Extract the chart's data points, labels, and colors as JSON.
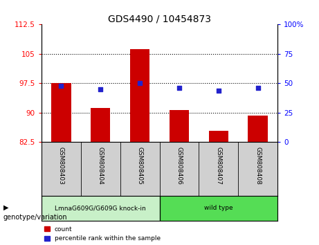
{
  "title": "GDS4490 / 10454873",
  "samples": [
    "GSM808403",
    "GSM808404",
    "GSM808405",
    "GSM808406",
    "GSM808407",
    "GSM808408"
  ],
  "counts": [
    97.5,
    91.2,
    106.2,
    90.7,
    85.3,
    89.2
  ],
  "percentiles": [
    48,
    45,
    50,
    46,
    44,
    46
  ],
  "left_ylim": [
    82.5,
    112.5
  ],
  "right_ylim": [
    0,
    100
  ],
  "left_yticks": [
    82.5,
    90,
    97.5,
    105,
    112.5
  ],
  "right_yticks": [
    0,
    25,
    50,
    75,
    100
  ],
  "dotted_lines": [
    90,
    97.5,
    105
  ],
  "bar_color": "#cc0000",
  "dot_color": "#2222cc",
  "bar_width": 0.5,
  "groups": [
    {
      "label": "LmnaG609G/G609G knock-in",
      "samples": [
        0,
        1,
        2
      ],
      "bg_color": "#c8f0c8"
    },
    {
      "label": "wild type",
      "samples": [
        3,
        4,
        5
      ],
      "bg_color": "#55dd55"
    }
  ],
  "sample_bg_color": "#d0d0d0",
  "group_label": "genotype/variation",
  "legend_count": "count",
  "legend_percentile": "percentile rank within the sample",
  "title_fontsize": 10,
  "tick_fontsize": 7.5,
  "sample_fontsize": 6.5,
  "group_fontsize": 6.5
}
